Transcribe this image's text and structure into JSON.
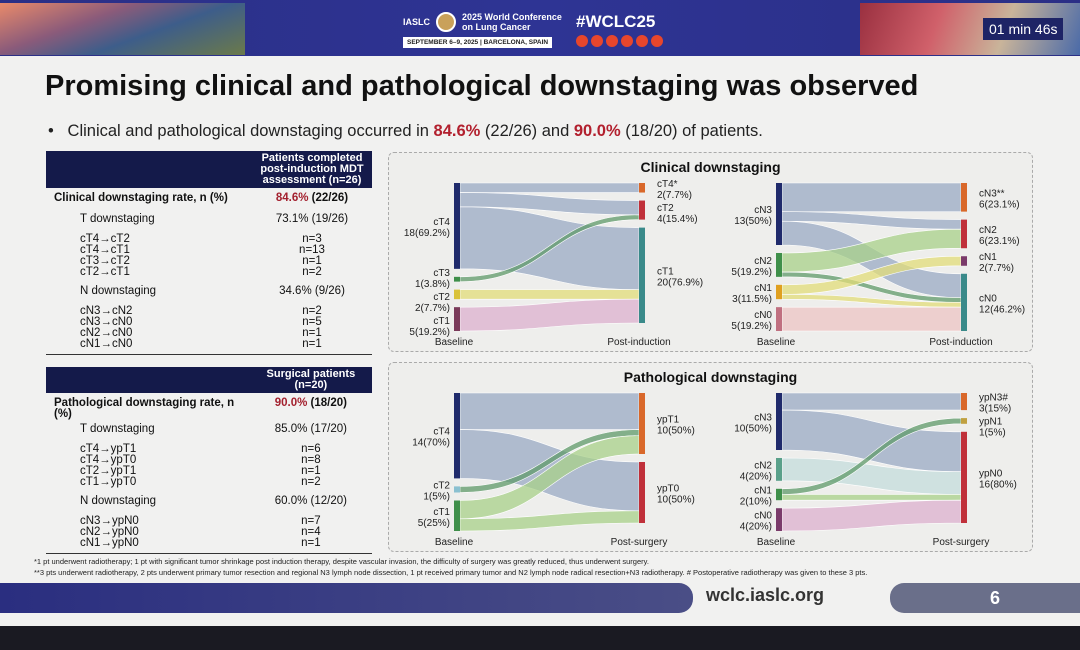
{
  "header": {
    "org": "IASLC",
    "conference": "2025 World Conference on Lung Cancer",
    "dates": "SEPTEMBER 6–9, 2025 | BARCELONA, SPAIN",
    "hashtag": "#WCLC25",
    "timer": "01 min 46s",
    "social_icons": [
      "facebook-icon",
      "linkedin-icon",
      "x-icon",
      "instagram-icon",
      "youtube-icon",
      "wechat-icon"
    ]
  },
  "title": "Promising clinical and pathological downstaging was observed",
  "bullet": {
    "prefix": "Clinical and pathological downstaging occurred in ",
    "v1": "84.6%",
    "mid1": " (22/26) and ",
    "v2": "90.0%",
    "suffix": " (18/20) of patients."
  },
  "table1": {
    "header": "Patients completed post-induction MDT assessment (n=26)",
    "rate_label": "Clinical downstaging rate, n (%)",
    "rate_pct": "84.6%",
    "rate_n": " (22/26)",
    "t_label": "T downstaging",
    "t_value": "73.1% (19/26)",
    "t_rows": [
      [
        "cT4→cT2",
        "n=3"
      ],
      [
        "cT4→cT1",
        "n=13"
      ],
      [
        "cT3→cT2",
        "n=1"
      ],
      [
        "cT2→cT1",
        "n=2"
      ]
    ],
    "n_label": "N downstaging",
    "n_value": "34.6% (9/26)",
    "n_rows": [
      [
        "cN3→cN2",
        "n=2"
      ],
      [
        "cN3→cN0",
        "n=5"
      ],
      [
        "cN2→cN0",
        "n=1"
      ],
      [
        "cN1→cN0",
        "n=1"
      ]
    ]
  },
  "table2": {
    "header": "Surgical patients (n=20)",
    "rate_label": "Pathological downstaging rate, n (%)",
    "rate_pct": "90.0%",
    "rate_n": " (18/20)",
    "t_label": "T downstaging",
    "t_value": "85.0% (17/20)",
    "t_rows": [
      [
        "cT4→ypT1",
        "n=6"
      ],
      [
        "cT4→ypT0",
        "n=8"
      ],
      [
        "cT2→ypT1",
        "n=1"
      ],
      [
        "cT1→ypT0",
        "n=2"
      ]
    ],
    "n_label": "N downstaging",
    "n_value": "60.0% (12/20)",
    "n_rows": [
      [
        "cN3→ypN0",
        "n=7"
      ],
      [
        "cN2→ypN0",
        "n=4"
      ],
      [
        "cN1→ypN0",
        "n=1"
      ]
    ]
  },
  "panels": {
    "clinical_title": "Clinical downstaging",
    "pathological_title": "Pathological downstaging"
  },
  "sankeys": {
    "clin_t": {
      "left_axis": "Baseline",
      "right_axis": "Post-induction",
      "left": [
        {
          "id": "cT4",
          "label": "cT4",
          "value": "18(69.2%)",
          "color": "#1f2a6b"
        },
        {
          "id": "cT3",
          "label": "cT3",
          "value": "1(3.8%)",
          "color": "#3f8f4a"
        },
        {
          "id": "cT2",
          "label": "cT2",
          "value": "2(7.7%)",
          "color": "#d9c23a"
        },
        {
          "id": "cT1",
          "label": "cT1",
          "value": "5(19.2%)",
          "color": "#7a3a5a"
        }
      ],
      "right": [
        {
          "id": "cT4",
          "label": "cT4*",
          "value": "2(7.7%)",
          "color": "#d9682a"
        },
        {
          "id": "cT2",
          "label": "cT2",
          "value": "4(15.4%)",
          "color": "#c0303a"
        },
        {
          "id": "cT1",
          "label": "cT1",
          "value": "20(76.9%)",
          "color": "#3a8a8a"
        }
      ],
      "flows": [
        [
          "cT4",
          "cT4",
          2,
          "#9aaac4"
        ],
        [
          "cT4",
          "cT2",
          3,
          "#9aaac4"
        ],
        [
          "cT4",
          "cT1",
          13,
          "#9aaac4"
        ],
        [
          "cT3",
          "cT2",
          1,
          "#5f9a6a"
        ],
        [
          "cT2",
          "cT1",
          2,
          "#e2dc7a"
        ],
        [
          "cT1",
          "cT1",
          5,
          "#dcb0cf"
        ]
      ]
    },
    "clin_n": {
      "left_axis": "Baseline",
      "right_axis": "Post-induction",
      "left": [
        {
          "id": "cN3",
          "label": "cN3",
          "value": "13(50%)",
          "color": "#1f2a6b"
        },
        {
          "id": "cN2",
          "label": "cN2",
          "value": "5(19.2%)",
          "color": "#3f8f4a"
        },
        {
          "id": "cN1",
          "label": "cN1",
          "value": "3(11.5%)",
          "color": "#e0a020"
        },
        {
          "id": "cN0",
          "label": "cN0",
          "value": "5(19.2%)",
          "color": "#c07080"
        }
      ],
      "right": [
        {
          "id": "cN3",
          "label": "cN3**",
          "value": "6(23.1%)",
          "color": "#d9682a"
        },
        {
          "id": "cN2",
          "label": "cN2",
          "value": "6(23.1%)",
          "color": "#c0303a"
        },
        {
          "id": "cN1",
          "label": "cN1",
          "value": "2(7.7%)",
          "color": "#7a3a6a"
        },
        {
          "id": "cN0",
          "label": "cN0",
          "value": "12(46.2%)",
          "color": "#3a8a8a"
        }
      ],
      "flows": [
        [
          "cN3",
          "cN3",
          6,
          "#9aaac4"
        ],
        [
          "cN3",
          "cN2",
          2,
          "#9aaac4"
        ],
        [
          "cN3",
          "cN0",
          5,
          "#9aaac4"
        ],
        [
          "cN2",
          "cN2",
          4,
          "#a8d08a"
        ],
        [
          "cN2",
          "cN0",
          1,
          "#5f9a6a"
        ],
        [
          "cN1",
          "cN1",
          2,
          "#e2dc7a"
        ],
        [
          "cN1",
          "cN0",
          1,
          "#e2dc7a"
        ],
        [
          "cN0",
          "cN0",
          5,
          "#ecc4c4"
        ]
      ]
    },
    "path_t": {
      "left_axis": "Baseline",
      "right_axis": "Post-surgery",
      "left": [
        {
          "id": "cT4",
          "label": "cT4",
          "value": "14(70%)",
          "color": "#1f2a6b"
        },
        {
          "id": "cT2",
          "label": "cT2",
          "value": "1(5%)",
          "color": "#8ac0d0"
        },
        {
          "id": "cT1",
          "label": "cT1",
          "value": "5(25%)",
          "color": "#3f8f4a"
        }
      ],
      "right": [
        {
          "id": "ypT1",
          "label": "ypT1",
          "value": "10(50%)",
          "color": "#d9682a"
        },
        {
          "id": "ypT0",
          "label": "ypT0",
          "value": "10(50%)",
          "color": "#c0303a"
        }
      ],
      "flows": [
        [
          "cT4",
          "ypT1",
          6,
          "#9aaac4"
        ],
        [
          "cT4",
          "ypT0",
          8,
          "#9aaac4"
        ],
        [
          "cT2",
          "ypT1",
          1,
          "#5f9a6a"
        ],
        [
          "cT1",
          "ypT1",
          3,
          "#a8d08a"
        ],
        [
          "cT1",
          "ypT0",
          2,
          "#a8d08a"
        ]
      ]
    },
    "path_n": {
      "left_axis": "Baseline",
      "right_axis": "Post-surgery",
      "left": [
        {
          "id": "cN3",
          "label": "cN3",
          "value": "10(50%)",
          "color": "#1f2a6b"
        },
        {
          "id": "cN2",
          "label": "cN2",
          "value": "4(20%)",
          "color": "#5aa08a"
        },
        {
          "id": "cN1",
          "label": "cN1",
          "value": "2(10%)",
          "color": "#3f8f4a"
        },
        {
          "id": "cN0",
          "label": "cN0",
          "value": "4(20%)",
          "color": "#7a3a6a"
        }
      ],
      "right": [
        {
          "id": "ypN3",
          "label": "ypN3#",
          "value": "3(15%)",
          "color": "#d9682a"
        },
        {
          "id": "ypN1",
          "label": "ypN1",
          "value": "1(5%)",
          "color": "#c0a040"
        },
        {
          "id": "ypN0",
          "label": "ypN0",
          "value": "16(80%)",
          "color": "#c0303a"
        }
      ],
      "flows": [
        [
          "cN3",
          "ypN3",
          3,
          "#9aaac4"
        ],
        [
          "cN3",
          "ypN0",
          7,
          "#9aaac4"
        ],
        [
          "cN2",
          "ypN0",
          4,
          "#c4dcdc"
        ],
        [
          "cN1",
          "ypN1",
          1,
          "#5f9a6a"
        ],
        [
          "cN1",
          "ypN0",
          1,
          "#a8d08a"
        ],
        [
          "cN0",
          "ypN0",
          4,
          "#dcb0cf"
        ]
      ]
    }
  },
  "footnotes": [
    "*1 pt underwent radiotherapy; 1 pt with significant tumor shrinkage post induction therapy, despite vascular invasion, the difficulty of surgery was greatly reduced, thus underwent surgery.",
    "**3 pts underwent radiotherapy, 2 pts underwent primary tumor resection and regional N3 lymph node dissection, 1 pt received primary tumor and N2 lymph node radical resection+N3 radiotherapy. # Postoperative radiotherapy was given to these 3 pts."
  ],
  "footer": {
    "url": "wclc.iaslc.org",
    "page": "6"
  }
}
